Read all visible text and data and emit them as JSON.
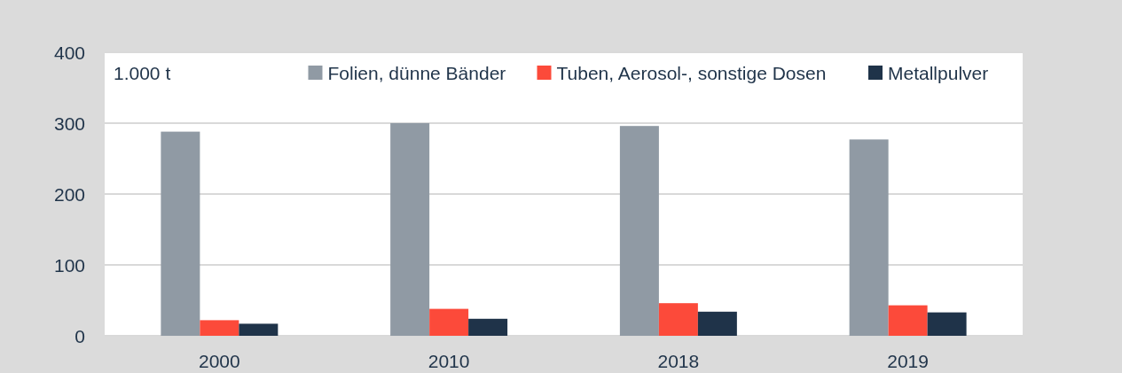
{
  "chart_data": {
    "type": "bar",
    "categories": [
      "2000",
      "2010",
      "2018",
      "2019"
    ],
    "series": [
      {
        "name": "Folien, dünne Bänder",
        "color": "#909aa4",
        "values": [
          288,
          300,
          296,
          277
        ]
      },
      {
        "name": "Tuben, Aerosol-, sonstige Dosen",
        "color": "#fc4a3a",
        "values": [
          22,
          38,
          46,
          43
        ]
      },
      {
        "name": "Metallpulver",
        "color": "#1f3349",
        "values": [
          17,
          24,
          34,
          33
        ]
      }
    ],
    "ylim": [
      0,
      400
    ],
    "yticks": [
      0,
      100,
      200,
      300,
      400
    ],
    "grid": "y",
    "legend": "top right",
    "annotations": [
      "1.000 t"
    ]
  }
}
